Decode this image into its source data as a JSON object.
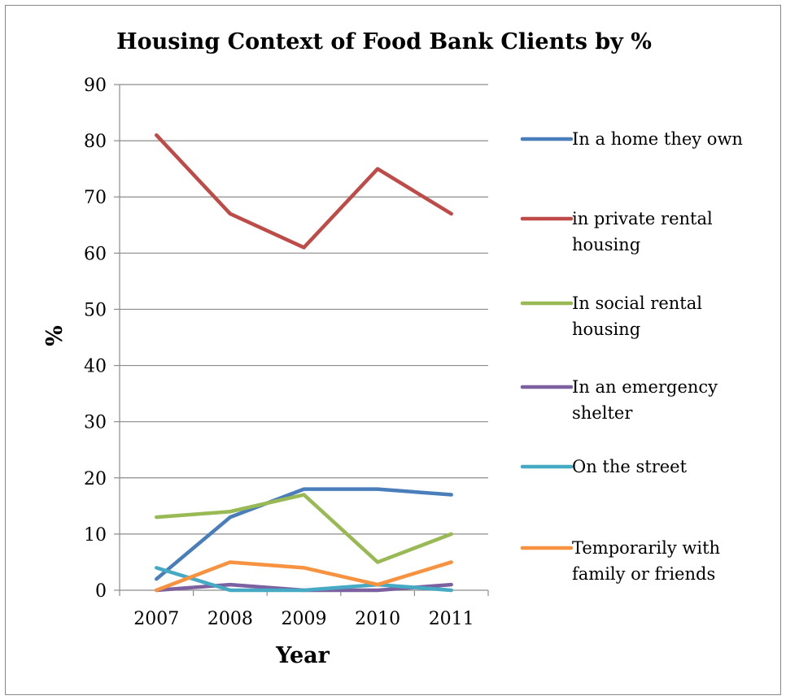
{
  "chart_data": {
    "type": "line",
    "title": "Housing Context of Food Bank Clients by %",
    "xlabel": "Year",
    "ylabel": "%",
    "categories": [
      "2007",
      "2008",
      "2009",
      "2010",
      "2011"
    ],
    "ylim": [
      0,
      90
    ],
    "yticks": [
      0,
      10,
      20,
      30,
      40,
      50,
      60,
      70,
      80,
      90
    ],
    "grid": true,
    "legend_position": "right",
    "series": [
      {
        "name": "In a home they own",
        "values": [
          2,
          13,
          18,
          18,
          17
        ],
        "color": "#4a7ebb"
      },
      {
        "name": "in private rental housing",
        "values": [
          81,
          67,
          61,
          75,
          67
        ],
        "color": "#be4b48"
      },
      {
        "name": "In social rental housing",
        "values": [
          13,
          14,
          17,
          5,
          10
        ],
        "color": "#98b954"
      },
      {
        "name": "In an emergency shelter",
        "values": [
          0,
          1,
          0,
          0,
          1
        ],
        "color": "#7d60a0"
      },
      {
        "name": "On the street",
        "values": [
          4,
          0,
          0,
          1,
          0
        ],
        "color": "#46aac5"
      },
      {
        "name": "Temporarily with family or friends",
        "values": [
          0,
          5,
          4,
          1,
          5
        ],
        "color": "#f69240"
      }
    ]
  }
}
